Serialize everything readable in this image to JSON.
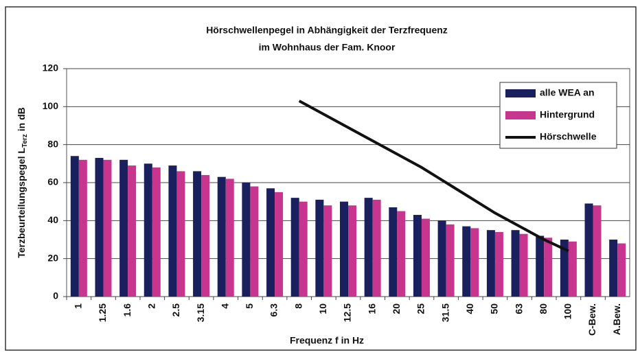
{
  "chart_data": {
    "type": "bar",
    "title": [
      "Hörschwellenpegel in Abhängigkeit der Terzfrequenz",
      "im Wohnhaus der Fam. Knoor"
    ],
    "x_label": "Frequenz f in Hz",
    "y_label": {
      "main": "Terzbeurteilungspegel L",
      "sub": "Terz",
      "unit": "in dB"
    },
    "categories": [
      "1",
      "1.25",
      "1.6",
      "2",
      "2.5",
      "3.15",
      "4",
      "5",
      "6.3",
      "8",
      "10",
      "12.5",
      "16",
      "20",
      "25",
      "31.5",
      "40",
      "50",
      "63",
      "80",
      "100",
      "C-Bew.",
      "A.Bew."
    ],
    "series": [
      {
        "name": "alle WEA an",
        "type": "bar",
        "color": "#1a1f5e",
        "values": [
          74,
          73,
          72,
          70,
          69,
          66,
          63,
          60,
          57,
          52,
          51,
          50,
          52,
          47,
          43,
          40,
          37,
          35,
          35,
          32,
          30,
          49,
          30
        ]
      },
      {
        "name": "Hintergrund",
        "type": "bar",
        "color": "#c8358f",
        "values": [
          72,
          72,
          69,
          68,
          66,
          64,
          62,
          58,
          55,
          50,
          48,
          48,
          51,
          45,
          41,
          38,
          36,
          34,
          33,
          31,
          29,
          48,
          28
        ]
      },
      {
        "name": "Hörschwelle",
        "type": "line",
        "color": "#111111",
        "values": [
          null,
          null,
          null,
          null,
          null,
          null,
          null,
          null,
          null,
          103,
          96,
          89,
          82,
          75,
          68,
          60,
          52,
          44,
          37,
          30,
          24,
          null,
          null
        ]
      }
    ],
    "ylim": [
      0,
      120
    ],
    "yticks": [
      0,
      20,
      40,
      60,
      80,
      100,
      120
    ],
    "grid": true,
    "legend": "upper right"
  }
}
